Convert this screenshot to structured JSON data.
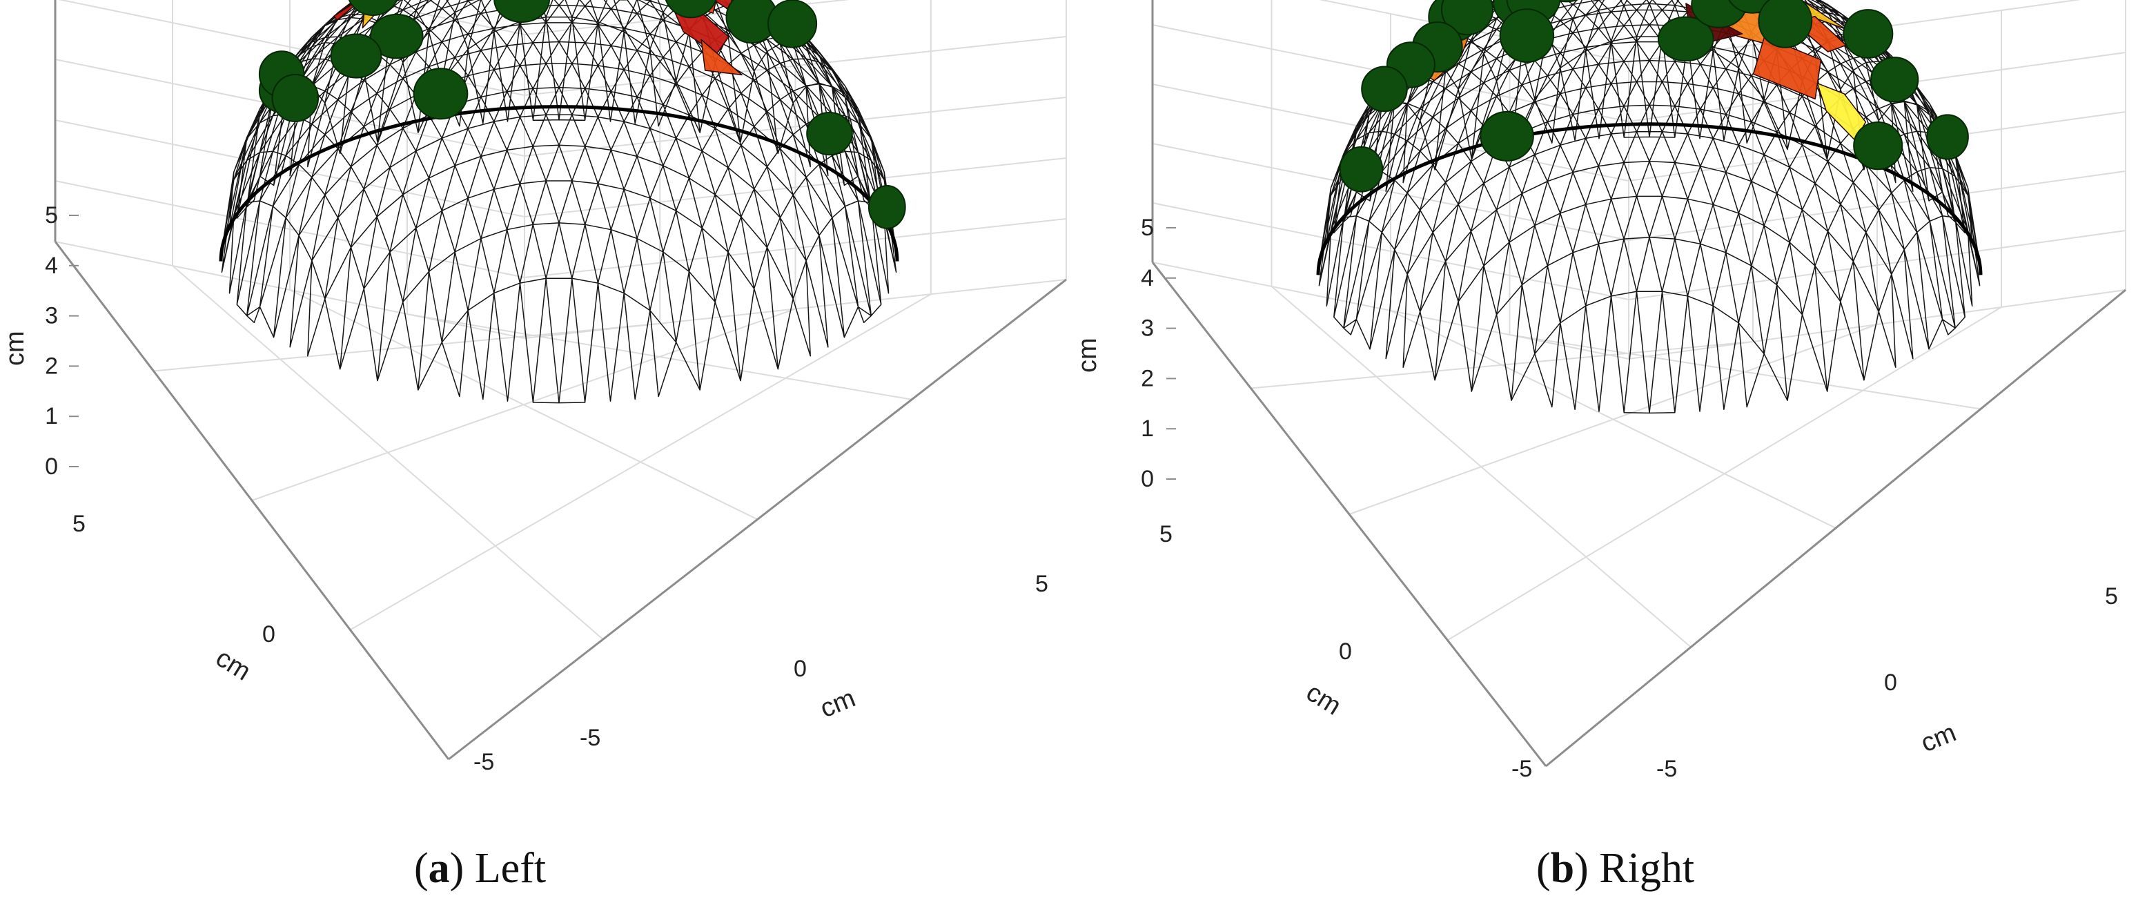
{
  "colors": {
    "mesh": "#141414",
    "axis": "#8c8c8c",
    "grid": "#dcdcdc",
    "electrode": "#0e4d0e",
    "activation": [
      "#5c0606",
      "#8e1010",
      "#c41a12",
      "#e84a12",
      "#f4801a",
      "#f5c21c",
      "#fff23a"
    ]
  },
  "axis_labels": {
    "z": "cm",
    "x": "cm",
    "y": "cm"
  },
  "z_ticks": [
    "0",
    "1",
    "2",
    "3",
    "4",
    "5"
  ],
  "x_ticks": [
    "-5",
    "0",
    "5"
  ],
  "y_ticks": [
    "-5",
    "0",
    "5"
  ],
  "panels": [
    {
      "id": "a",
      "caption": {
        "letter": "a",
        "label": "Left"
      },
      "electrodes": [
        [
          0.39,
          0.31
        ],
        [
          -0.11,
          0.88
        ],
        [
          0.19,
          0.79
        ],
        [
          -0.55,
          0.49
        ],
        [
          0.01,
          0.58
        ],
        [
          0.27,
          0.58
        ],
        [
          -0.48,
          0.79
        ],
        [
          -0.6,
          0.72
        ],
        [
          -0.82,
          0.44
        ],
        [
          -0.82,
          0.19
        ],
        [
          -0.78,
          -0.13
        ],
        [
          -0.35,
          0.33
        ],
        [
          -0.29,
          0.04
        ],
        [
          -0.35,
          -0.49
        ],
        [
          0.19,
          0.07
        ],
        [
          0.39,
          -0.02
        ],
        [
          0.57,
          0.0
        ],
        [
          0.8,
          0.58
        ],
        [
          0.69,
          0.35
        ],
        [
          0.97,
          -0.09
        ]
      ],
      "patches": [
        {
          "c": [
            -0.52,
            0.56
          ],
          "r": 0.12,
          "col": 5
        },
        {
          "c": [
            -0.44,
            0.48
          ],
          "r": 0.13,
          "col": 4
        },
        {
          "c": [
            -0.4,
            0.3
          ],
          "r": 0.12,
          "col": 2
        },
        {
          "c": [
            -0.28,
            0.42
          ],
          "r": 0.11,
          "col": 1
        },
        {
          "c": [
            -0.2,
            0.58
          ],
          "r": 0.12,
          "col": 3
        },
        {
          "c": [
            -0.12,
            0.72
          ],
          "r": 0.13,
          "col": 0
        },
        {
          "c": [
            -0.05,
            0.5
          ],
          "r": 0.11,
          "col": 6
        },
        {
          "c": [
            -0.14,
            0.34
          ],
          "r": 0.12,
          "col": 0
        },
        {
          "c": [
            -0.3,
            0.22
          ],
          "r": 0.1,
          "col": 5
        },
        {
          "c": [
            -0.46,
            0.18
          ],
          "r": 0.1,
          "col": 2
        },
        {
          "c": [
            -0.36,
            0.08
          ],
          "r": 0.1,
          "col": 3
        },
        {
          "c": [
            -0.58,
            0.34
          ],
          "r": 0.09,
          "col": 1
        },
        {
          "c": [
            -0.62,
            0.22
          ],
          "r": 0.08,
          "col": 2
        },
        {
          "c": [
            0.14,
            0.72
          ],
          "r": 0.1,
          "col": 0
        },
        {
          "c": [
            0.28,
            0.68
          ],
          "r": 0.09,
          "col": 1
        },
        {
          "c": [
            0.34,
            0.52
          ],
          "r": 0.11,
          "col": 5
        },
        {
          "c": [
            0.26,
            0.44
          ],
          "r": 0.08,
          "col": 6
        },
        {
          "c": [
            0.46,
            0.66
          ],
          "r": 0.06,
          "col": 2
        },
        {
          "c": [
            0.36,
            0.1
          ],
          "r": 0.08,
          "col": 5
        },
        {
          "c": [
            0.4,
            -0.04
          ],
          "r": 0.09,
          "col": 3
        },
        {
          "c": [
            0.42,
            -0.2
          ],
          "r": 0.09,
          "col": 2
        },
        {
          "c": [
            0.46,
            -0.32
          ],
          "r": 0.08,
          "col": 3
        }
      ]
    },
    {
      "id": "b",
      "caption": {
        "letter": "b",
        "label": "Right"
      },
      "electrodes": [
        [
          0.11,
          0.92
        ],
        [
          -0.39,
          0.69
        ],
        [
          -0.25,
          0.65
        ],
        [
          -0.59,
          0.42
        ],
        [
          0.21,
          0.81
        ],
        [
          0.74,
          0.52
        ],
        [
          0.66,
          0.31
        ],
        [
          0.9,
          0.12
        ],
        [
          -0.55,
          0.25
        ],
        [
          -0.64,
          0.04
        ],
        [
          -0.87,
          -0.19
        ],
        [
          -0.35,
          0.05
        ],
        [
          -0.37,
          -0.18
        ],
        [
          -0.43,
          -0.53
        ],
        [
          0.31,
          0.11
        ],
        [
          0.41,
          -0.07
        ],
        [
          0.69,
          -0.37
        ],
        [
          -0.72,
          0.49
        ],
        [
          -0.8,
          0.39
        ]
      ],
      "patches": [
        {
          "c": [
            -0.38,
            0.48
          ],
          "r": 0.11,
          "col": 3
        },
        {
          "c": [
            -0.26,
            0.55
          ],
          "r": 0.12,
          "col": 2
        },
        {
          "c": [
            -0.14,
            0.44
          ],
          "r": 0.12,
          "col": 1
        },
        {
          "c": [
            -0.04,
            0.36
          ],
          "r": 0.12,
          "col": 4
        },
        {
          "c": [
            -0.26,
            0.38
          ],
          "r": 0.09,
          "col": 0
        },
        {
          "c": [
            -0.62,
            0.28
          ],
          "r": 0.1,
          "col": 0
        },
        {
          "c": [
            -0.56,
            0.16
          ],
          "r": 0.1,
          "col": 5
        },
        {
          "c": [
            -0.58,
            0.04
          ],
          "r": 0.09,
          "col": 3
        },
        {
          "c": [
            -0.62,
            -0.08
          ],
          "r": 0.08,
          "col": 4
        },
        {
          "c": [
            0.16,
            0.76
          ],
          "r": 0.08,
          "col": 6
        },
        {
          "c": [
            0.12,
            0.58
          ],
          "r": 0.11,
          "col": 2
        },
        {
          "c": [
            0.16,
            0.44
          ],
          "r": 0.09,
          "col": 3
        },
        {
          "c": [
            0.08,
            0.3
          ],
          "r": 0.08,
          "col": 2
        },
        {
          "c": [
            0.2,
            0.08
          ],
          "r": 0.14,
          "col": 6
        },
        {
          "c": [
            0.34,
            0.04
          ],
          "r": 0.12,
          "col": 1
        },
        {
          "c": [
            0.48,
            0.1
          ],
          "r": 0.11,
          "col": 5
        },
        {
          "c": [
            0.52,
            -0.04
          ],
          "r": 0.1,
          "col": 3
        },
        {
          "c": [
            0.3,
            -0.14
          ],
          "r": 0.12,
          "col": 4
        },
        {
          "c": [
            0.18,
            -0.22
          ],
          "r": 0.12,
          "col": 0
        },
        {
          "c": [
            0.42,
            -0.28
          ],
          "r": 0.13,
          "col": 3
        },
        {
          "c": [
            0.58,
            -0.34
          ],
          "r": 0.08,
          "col": 6
        },
        {
          "c": [
            0.26,
            -0.06
          ],
          "r": 0.1,
          "col": 2
        }
      ]
    }
  ]
}
